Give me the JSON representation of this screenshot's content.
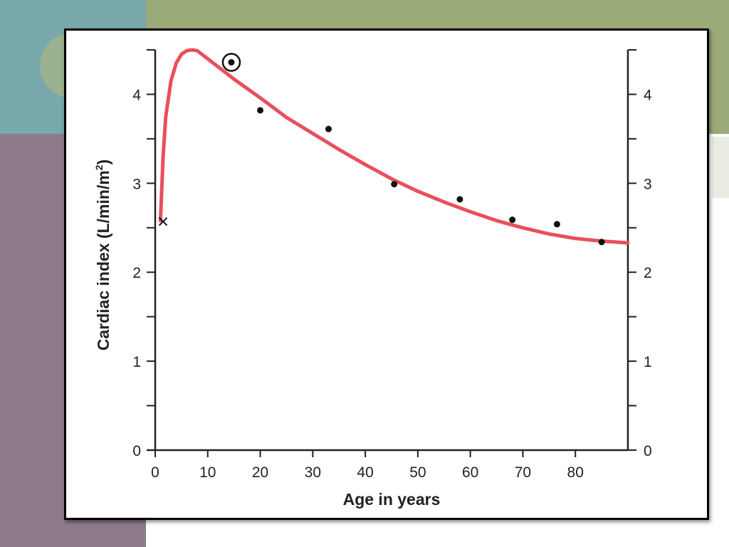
{
  "chart_data": {
    "type": "line",
    "xlabel": "Age in years",
    "ylabel_text": "Cardiac index (L/min/m",
    "ylabel_sup": "2",
    "ylabel_close": ")",
    "xlim": [
      0,
      90
    ],
    "ylim": [
      0,
      4.5
    ],
    "x_ticks": [
      0,
      10,
      20,
      30,
      40,
      50,
      60,
      70,
      80
    ],
    "y_ticks": [
      0,
      1,
      2,
      3,
      4
    ],
    "grid": false,
    "curve_color": "#e8505b",
    "curve": [
      {
        "x": 1,
        "y": 2.58
      },
      {
        "x": 1.5,
        "y": 3.3
      },
      {
        "x": 2,
        "y": 3.75
      },
      {
        "x": 3,
        "y": 4.15
      },
      {
        "x": 4,
        "y": 4.35
      },
      {
        "x": 5,
        "y": 4.45
      },
      {
        "x": 6,
        "y": 4.49
      },
      {
        "x": 7,
        "y": 4.5
      },
      {
        "x": 8,
        "y": 4.49
      },
      {
        "x": 10,
        "y": 4.4
      },
      {
        "x": 15,
        "y": 4.17
      },
      {
        "x": 20,
        "y": 3.96
      },
      {
        "x": 25,
        "y": 3.74
      },
      {
        "x": 30,
        "y": 3.56
      },
      {
        "x": 35,
        "y": 3.38
      },
      {
        "x": 40,
        "y": 3.21
      },
      {
        "x": 45,
        "y": 3.05
      },
      {
        "x": 50,
        "y": 2.91
      },
      {
        "x": 55,
        "y": 2.79
      },
      {
        "x": 60,
        "y": 2.68
      },
      {
        "x": 65,
        "y": 2.58
      },
      {
        "x": 70,
        "y": 2.5
      },
      {
        "x": 75,
        "y": 2.43
      },
      {
        "x": 80,
        "y": 2.38
      },
      {
        "x": 85,
        "y": 2.35
      },
      {
        "x": 90,
        "y": 2.33
      }
    ],
    "points": [
      {
        "x": 20,
        "y": 3.82
      },
      {
        "x": 33,
        "y": 3.61
      },
      {
        "x": 45.5,
        "y": 2.99
      },
      {
        "x": 58,
        "y": 2.82
      },
      {
        "x": 68,
        "y": 2.59
      },
      {
        "x": 76.5,
        "y": 2.54
      },
      {
        "x": 85,
        "y": 2.34
      }
    ],
    "circled_point": {
      "x": 14.5,
      "y": 4.36
    },
    "cross_point": {
      "x": 1.5,
      "y": 2.57
    }
  }
}
